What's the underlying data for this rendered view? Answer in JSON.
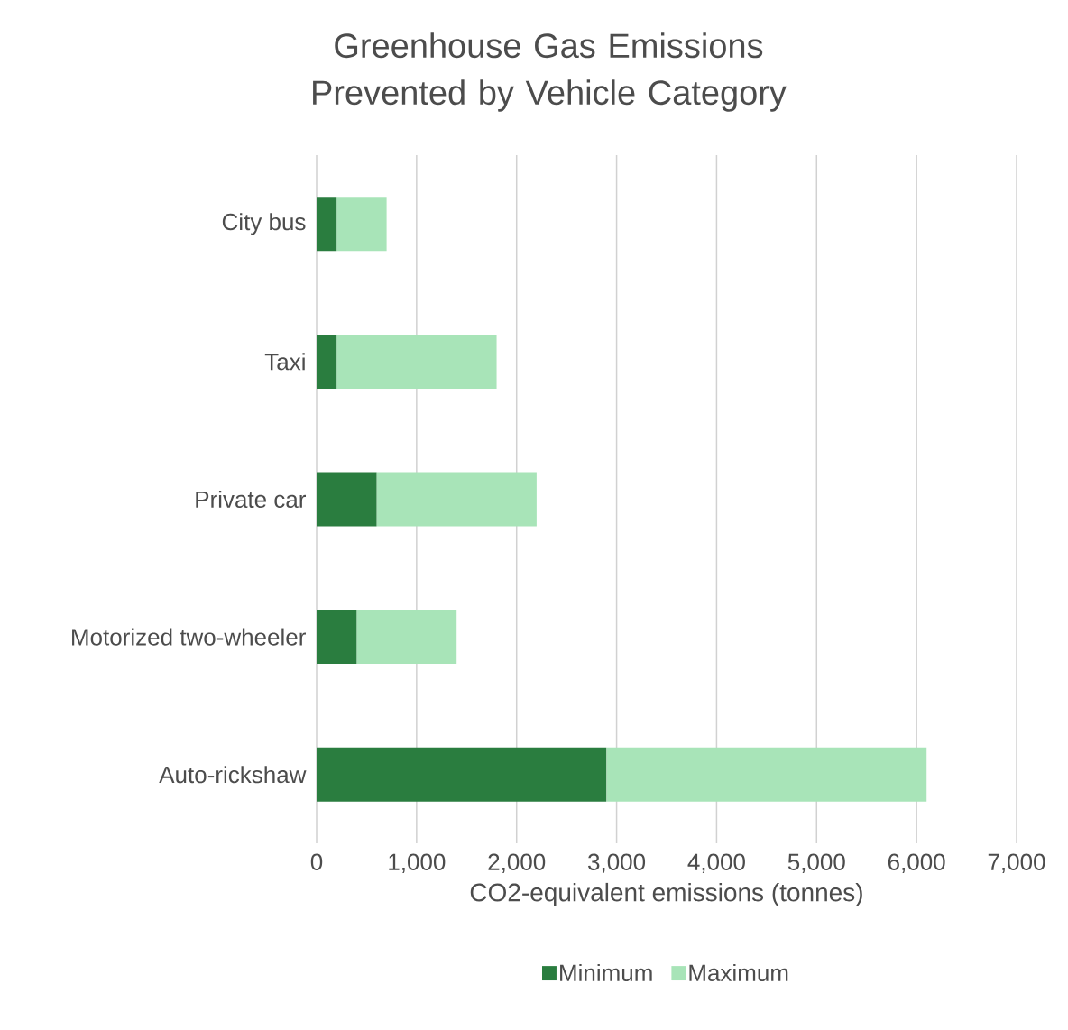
{
  "chart_data": {
    "type": "bar",
    "orientation": "horizontal",
    "stacked": true,
    "title": "Greenhouse Gas Emissions Prevented by Vehicle Category",
    "xlabel": "CO2-equivalent emissions (tonnes)",
    "categories": [
      "City bus",
      "Taxi",
      "Private car",
      "Motorized two-wheeler",
      "Auto-rickshaw"
    ],
    "series": [
      {
        "name": "Minimum",
        "color": "#2a7d3f",
        "values": [
          200,
          200,
          600,
          400,
          2900
        ]
      },
      {
        "name": "Maximum",
        "color": "#a8e4b8",
        "values": [
          500,
          1600,
          1600,
          1000,
          3200
        ]
      }
    ],
    "xlim": [
      0,
      7000
    ],
    "xticks": [
      0,
      {
        "value": 1000,
        "label": "1,000"
      },
      {
        "value": 2000,
        "label": "2,000"
      },
      {
        "value": 3000,
        "label": "3,000"
      },
      {
        "value": 4000,
        "label": "4,000"
      },
      {
        "value": 5000,
        "label": "5,000"
      },
      {
        "value": 6000,
        "label": "6,000"
      },
      {
        "value": 7000,
        "label": "7,000"
      }
    ],
    "grid": "x",
    "legend": "bottom"
  }
}
